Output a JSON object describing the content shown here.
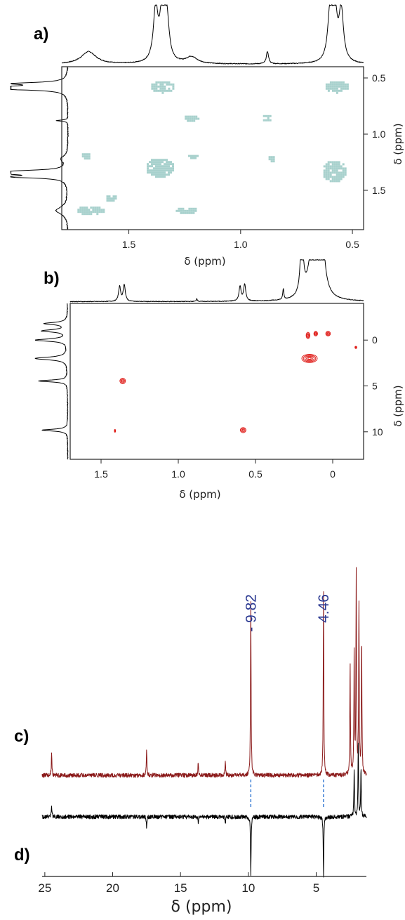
{
  "panels": {
    "a": "a)",
    "b": "b)",
    "c": "c)",
    "d": "d)"
  },
  "colors": {
    "panel_a_cross_peaks": "#a8d1cd",
    "panel_b_contours": "#e0201c",
    "spectrum_c": "#8b1a1a",
    "spectrum_d": "#000000",
    "peak_label": "#2c3a92",
    "peak_guide": "#3f7fd4"
  },
  "chart_data": [
    {
      "panel": "a",
      "type": "heatmap",
      "xlabel": "δ (ppm)",
      "ylabel": "δ (ppm)",
      "xlim": [
        1.8,
        0.45
      ],
      "ylim": [
        0.4,
        1.85
      ],
      "x_ticks": [
        "1.5",
        "1.0",
        "0.5"
      ],
      "y_ticks": [
        "0.5",
        "1.0",
        "1.5"
      ],
      "x_tick_values": [
        1.5,
        1.0,
        0.5
      ],
      "y_tick_values": [
        0.5,
        1.0,
        1.5
      ],
      "projection_peaks": [
        {
          "shift": 1.38,
          "height": 0.95,
          "width": 0.012
        },
        {
          "shift": 1.35,
          "height": 1.0,
          "width": 0.012
        },
        {
          "shift": 1.33,
          "height": 0.75,
          "width": 0.012
        },
        {
          "shift": 1.68,
          "height": 0.22,
          "width": 0.04
        },
        {
          "shift": 1.22,
          "height": 0.12,
          "width": 0.03
        },
        {
          "shift": 0.88,
          "height": 0.22,
          "width": 0.006
        },
        {
          "shift": 0.6,
          "height": 0.85,
          "width": 0.012
        },
        {
          "shift": 0.58,
          "height": 1.0,
          "width": 0.012
        },
        {
          "shift": 0.55,
          "height": 0.9,
          "width": 0.012
        }
      ],
      "cross_peaks": [
        {
          "x": 1.35,
          "y": 0.58,
          "w": 0.1,
          "h": 0.1
        },
        {
          "x": 0.57,
          "y": 0.58,
          "w": 0.1,
          "h": 0.1
        },
        {
          "x": 1.22,
          "y": 0.86,
          "w": 0.06,
          "h": 0.05
        },
        {
          "x": 0.88,
          "y": 0.86,
          "w": 0.04,
          "h": 0.06
        },
        {
          "x": 1.69,
          "y": 1.2,
          "w": 0.04,
          "h": 0.06
        },
        {
          "x": 1.36,
          "y": 1.3,
          "w": 0.12,
          "h": 0.16
        },
        {
          "x": 1.21,
          "y": 1.2,
          "w": 0.05,
          "h": 0.03
        },
        {
          "x": 0.86,
          "y": 1.22,
          "w": 0.03,
          "h": 0.05
        },
        {
          "x": 0.58,
          "y": 1.33,
          "w": 0.1,
          "h": 0.18
        },
        {
          "x": 1.67,
          "y": 1.68,
          "w": 0.12,
          "h": 0.07
        },
        {
          "x": 1.58,
          "y": 1.57,
          "w": 0.06,
          "h": 0.05
        },
        {
          "x": 1.24,
          "y": 1.68,
          "w": 0.1,
          "h": 0.05
        }
      ]
    },
    {
      "panel": "b",
      "type": "heatmap",
      "xlabel": "δ (ppm)",
      "ylabel": "δ (ppm)",
      "xlim": [
        1.7,
        -0.2
      ],
      "ylim": [
        -4,
        13
      ],
      "x_ticks": [
        "1.5",
        "1.0",
        "0.5",
        "0"
      ],
      "y_ticks": [
        "0",
        "5",
        "10"
      ],
      "x_tick_values": [
        1.5,
        1.0,
        0.5,
        0
      ],
      "y_tick_values": [
        0,
        5,
        10
      ],
      "projection_peaks": [
        {
          "shift": 1.38,
          "height": 0.3,
          "width": 0.008
        },
        {
          "shift": 1.35,
          "height": 0.34,
          "width": 0.008
        },
        {
          "shift": 0.6,
          "height": 0.3,
          "width": 0.008
        },
        {
          "shift": 0.57,
          "height": 0.34,
          "width": 0.008
        },
        {
          "shift": 0.88,
          "height": 0.06,
          "width": 0.004
        },
        {
          "shift": 0.32,
          "height": 0.22,
          "width": 0.004
        },
        {
          "shift": 0.2,
          "height": 1.4,
          "width": 0.01
        },
        {
          "shift": 0.12,
          "height": 1.6,
          "width": 0.03
        },
        {
          "shift": 0.07,
          "height": 1.2,
          "width": 0.02
        }
      ],
      "f1_projection_peaks": [
        {
          "shift": -1.8,
          "height": 0.7,
          "width": 0.15
        },
        {
          "shift": -1.0,
          "height": 0.78,
          "width": 0.15
        },
        {
          "shift": 0.0,
          "height": 1.0,
          "width": 0.15
        },
        {
          "shift": 2.0,
          "height": 1.0,
          "width": 0.18
        },
        {
          "shift": 4.46,
          "height": 0.9,
          "width": 0.12
        },
        {
          "shift": 9.82,
          "height": 0.8,
          "width": 0.12
        }
      ],
      "cross_peaks": [
        {
          "x": 0.16,
          "y": -0.5,
          "rx": 0.012,
          "ry": 0.35
        },
        {
          "x": 0.11,
          "y": -0.7,
          "rx": 0.012,
          "ry": 0.25
        },
        {
          "x": 0.03,
          "y": -0.7,
          "rx": 0.015,
          "ry": 0.25
        },
        {
          "x": 0.15,
          "y": 2.0,
          "rx": 0.05,
          "ry": 0.45
        },
        {
          "x": -0.15,
          "y": 0.8,
          "rx": 0.006,
          "ry": 0.12
        },
        {
          "x": 1.36,
          "y": 4.46,
          "rx": 0.018,
          "ry": 0.3
        },
        {
          "x": 0.58,
          "y": 9.82,
          "rx": 0.018,
          "ry": 0.28
        },
        {
          "x": 1.41,
          "y": 9.9,
          "rx": 0.004,
          "ry": 0.15
        }
      ]
    },
    {
      "panel": "c/d",
      "type": "line",
      "xlabel": "δ (ppm)",
      "xlim": [
        25.2,
        1.3
      ],
      "x_ticks": [
        "25",
        "20",
        "15",
        "10",
        "5"
      ],
      "x_tick_values": [
        25,
        20,
        15,
        10,
        5
      ],
      "annotations": [
        "- 9.82",
        "4.46"
      ],
      "annotation_shifts": [
        9.82,
        4.46
      ],
      "series": [
        {
          "panel": "c",
          "peaks": [
            {
              "shift": 24.5,
              "height": 0.12
            },
            {
              "shift": 17.5,
              "height": 0.13
            },
            {
              "shift": 13.7,
              "height": 0.07
            },
            {
              "shift": 11.7,
              "height": 0.08
            },
            {
              "shift": 9.82,
              "height": 0.87
            },
            {
              "shift": 4.46,
              "height": 0.92
            },
            {
              "shift": 2.5,
              "height": 0.58
            },
            {
              "shift": 2.2,
              "height": 0.62
            },
            {
              "shift": 2.05,
              "height": 1.0
            },
            {
              "shift": 1.85,
              "height": 0.85
            },
            {
              "shift": 1.65,
              "height": 0.7
            }
          ]
        },
        {
          "panel": "d",
          "peaks": [
            {
              "shift": 24.5,
              "height": 0.06
            },
            {
              "shift": 17.5,
              "height": -0.05
            },
            {
              "shift": 13.7,
              "height": -0.03
            },
            {
              "shift": 11.7,
              "height": -0.04
            },
            {
              "shift": 9.82,
              "height": -0.3
            },
            {
              "shift": 4.46,
              "height": -0.3
            },
            {
              "shift": 2.2,
              "height": 0.25
            },
            {
              "shift": 1.9,
              "height": 0.38
            },
            {
              "shift": 1.7,
              "height": 0.25
            }
          ]
        }
      ]
    }
  ]
}
